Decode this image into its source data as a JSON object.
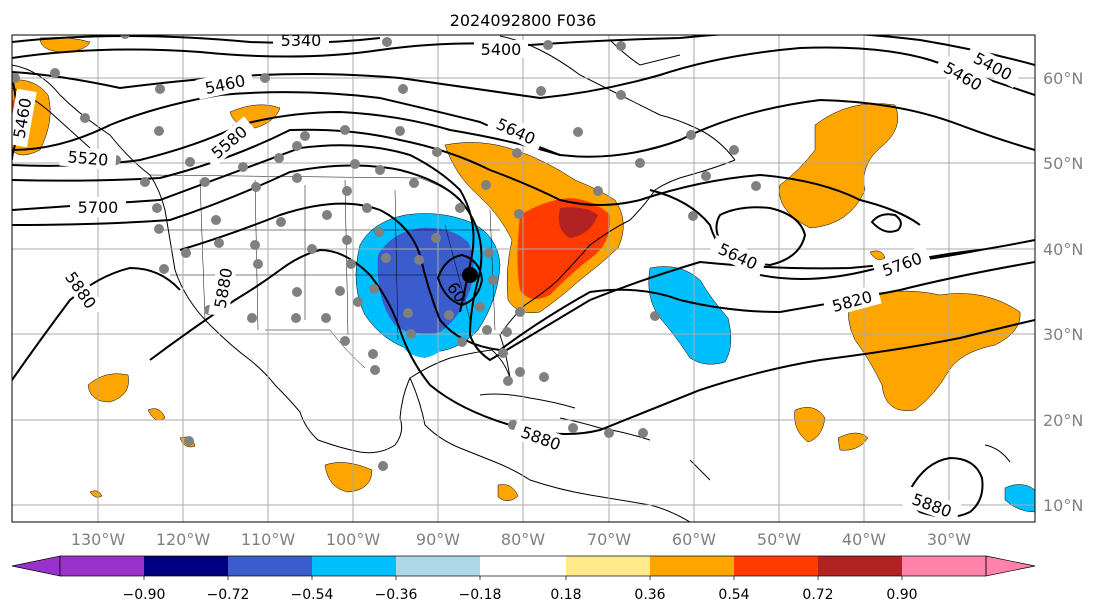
{
  "map": {
    "title": "2024092800 F036",
    "lat_labels": [
      "60°N",
      "50°N",
      "40°N",
      "30°N",
      "20°N",
      "10°N"
    ],
    "lon_labels": [
      "130°W",
      "120°W",
      "110°W",
      "100°W",
      "90°W",
      "80°W",
      "70°W",
      "60°W",
      "50°W",
      "40°W",
      "30°W"
    ],
    "contour_labels": [
      "5340",
      "5400",
      "5400",
      "5460",
      "5460",
      "5460",
      "5520",
      "5580",
      "5640",
      "5640",
      "5700",
      "5760",
      "5820",
      "5880",
      "5880",
      "5880",
      "5880",
      "60"
    ],
    "colors": {
      "purple": "#9932cc",
      "navy": "#000080",
      "royal_blue": "#3a5ccc",
      "deep_sky": "#00bfff",
      "light_blue": "#add8e6",
      "white": "#ffffff",
      "light_yellow": "#ffe98a",
      "orange": "#ffa500",
      "red_orange": "#ff3b00",
      "firebrick": "#b22222",
      "pink": "#ff82ab",
      "station": "#808080",
      "gridline": "#a9a9a9"
    }
  },
  "colorbar": {
    "labels": [
      "−0.90",
      "−0.72",
      "−0.54",
      "−0.36",
      "−0.18",
      "0.18",
      "0.36",
      "0.54",
      "0.72",
      "0.90"
    ]
  }
}
